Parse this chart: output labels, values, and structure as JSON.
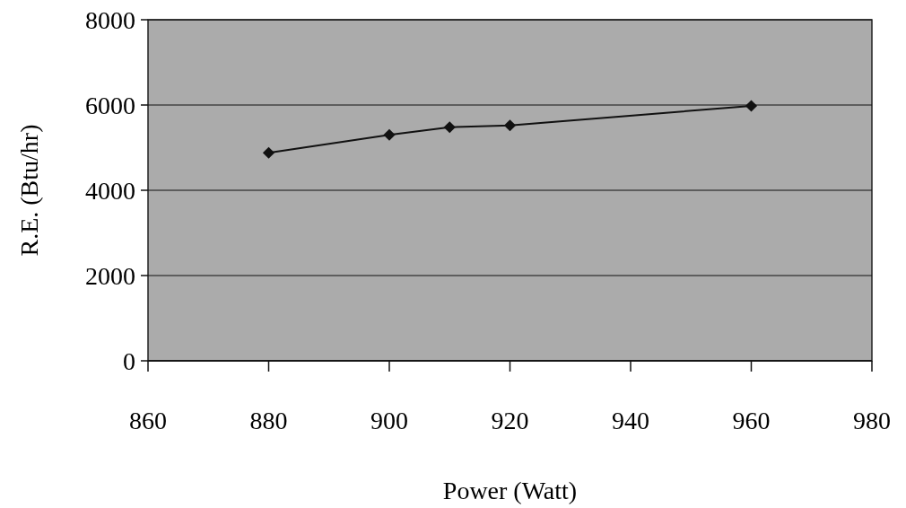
{
  "chart_data": {
    "type": "line",
    "xlabel": "Power (Watt)",
    "ylabel": "R.E. (Btu/hr)",
    "x": [
      880,
      900,
      910,
      920,
      960
    ],
    "series": [
      {
        "color": "#111111",
        "values": [
          4880,
          5300,
          5480,
          5520,
          5980
        ]
      }
    ],
    "xlim": [
      860,
      980
    ],
    "xticks": [
      860,
      880,
      900,
      920,
      940,
      960,
      980
    ],
    "ylim": [
      0,
      8000
    ],
    "yticks": [
      0,
      2000,
      4000,
      6000,
      8000
    ],
    "grid": "y",
    "marker": "diamond",
    "line_style": "solid"
  }
}
